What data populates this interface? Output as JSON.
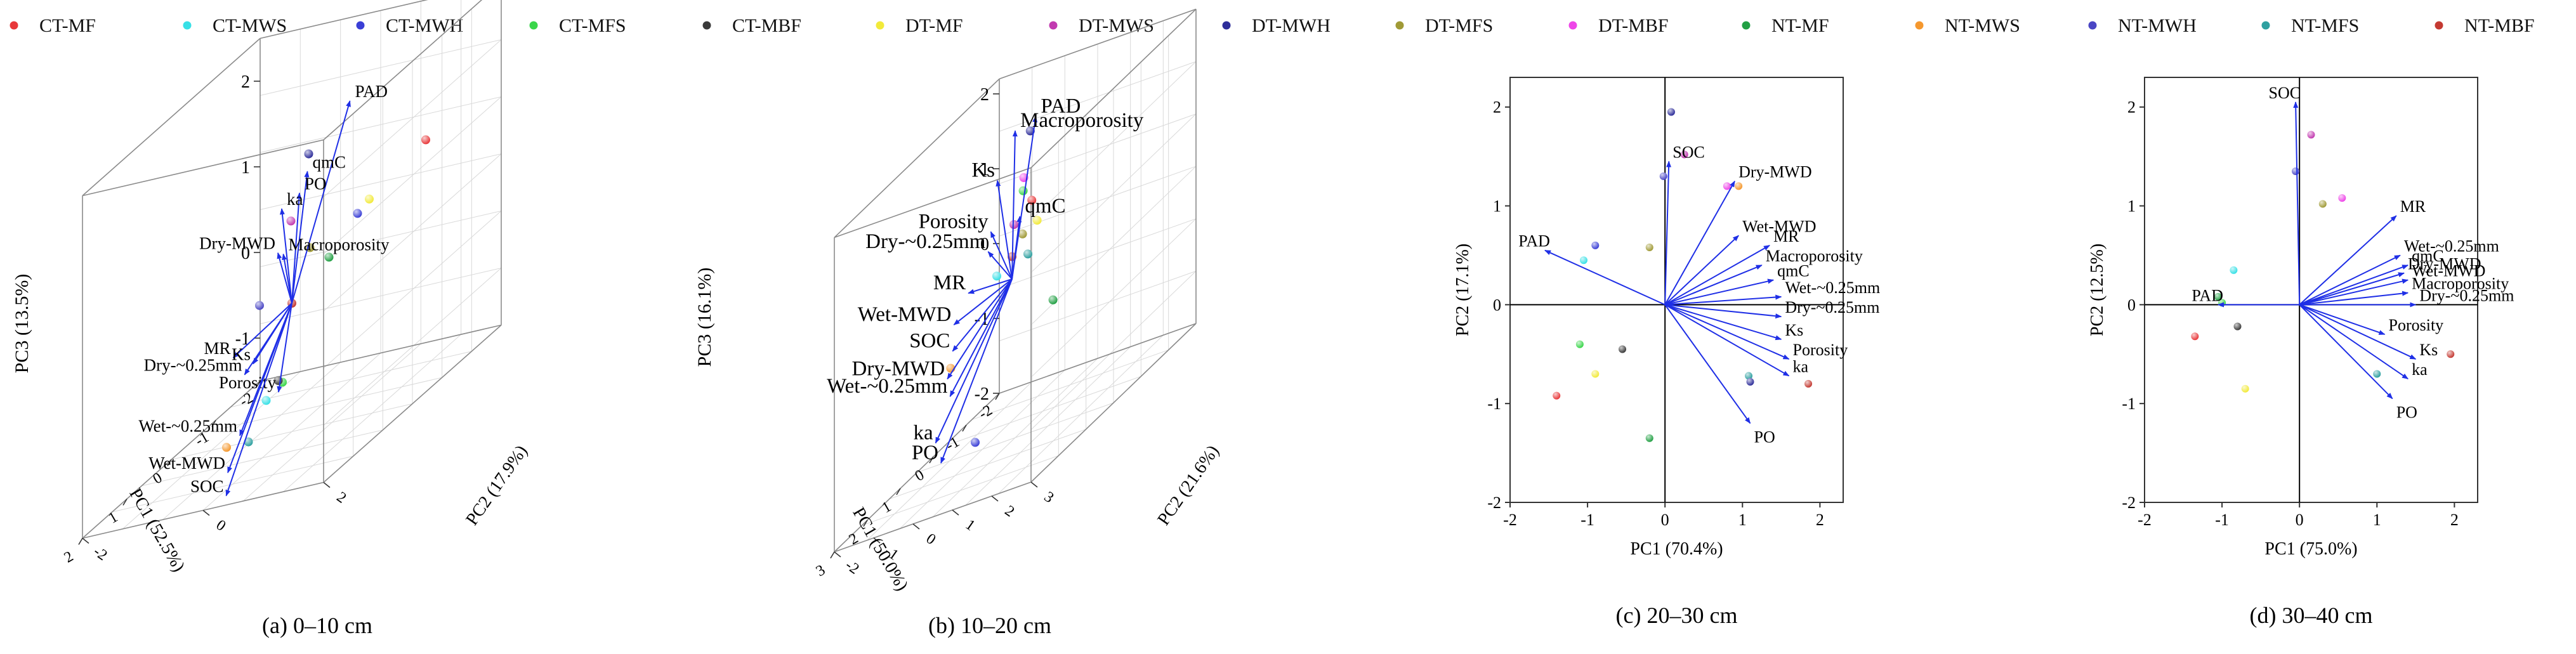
{
  "legend": [
    {
      "label": "CT-MF",
      "color": "#e8383a"
    },
    {
      "label": "CT-MWS",
      "color": "#37e0e6"
    },
    {
      "label": "CT-MWH",
      "color": "#3a3fd6"
    },
    {
      "label": "CT-MFS",
      "color": "#3ad64a"
    },
    {
      "label": "CT-MBF",
      "color": "#3a3a3a"
    },
    {
      "label": "DT-MF",
      "color": "#f2ea3a"
    },
    {
      "label": "DT-MWS",
      "color": "#c23ab0"
    },
    {
      "label": "DT-MWH",
      "color": "#2e2e9a"
    },
    {
      "label": "DT-MFS",
      "color": "#a09a36"
    },
    {
      "label": "DT-MBF",
      "color": "#ee46e8"
    },
    {
      "label": "NT-MF",
      "color": "#22a044"
    },
    {
      "label": "NT-MWS",
      "color": "#f5982e"
    },
    {
      "label": "NT-MWH",
      "color": "#4a46c4"
    },
    {
      "label": "NT-MFS",
      "color": "#2ea0a0"
    },
    {
      "label": "NT-MBF",
      "color": "#c43a32"
    }
  ],
  "chart_data": [
    {
      "type": "scatter-3d-biplot",
      "caption": "(a) 0–10 cm",
      "xlabel": "PC1 (52.5%)",
      "ylabel": "PC2 (17.9%)",
      "zlabel": "PC3 (13.5%)",
      "xlim": [
        -2,
        2
      ],
      "ylim": [
        -2,
        2
      ],
      "zlim": [
        -1.5,
        2.5
      ],
      "zticks": [
        "-1",
        "0",
        "1",
        "2"
      ],
      "xticks": [
        "-2",
        "-1",
        "0",
        "1",
        "2"
      ],
      "yticks": [
        "-2",
        "0",
        "2"
      ],
      "loadings": [
        {
          "name": "PAD",
          "x": -0.9,
          "y": 0.3,
          "z": 1.9
        },
        {
          "name": "qmC",
          "x": 0.6,
          "y": 0.7,
          "z": 1.7
        },
        {
          "name": "PO",
          "x": 0.1,
          "y": 0.2,
          "z": 1.3
        },
        {
          "name": "ka",
          "x": 0.5,
          "y": 0.2,
          "z": 1.3
        },
        {
          "name": "Dry-MWD",
          "x": 1.4,
          "y": 0.8,
          "z": 1.1
        },
        {
          "name": "Macroporosity",
          "x": 0.6,
          "y": 0.3,
          "z": 0.8
        },
        {
          "name": "MR",
          "x": 2.0,
          "y": 0.5,
          "z": 0.2
        },
        {
          "name": "Ks",
          "x": 0.6,
          "y": -0.2,
          "z": -0.4
        },
        {
          "name": "Dry-~0.25mm",
          "x": 1.2,
          "y": 0.1,
          "z": -0.3
        },
        {
          "name": "Porosity",
          "x": 0.3,
          "y": 0.0,
          "z": -0.9
        },
        {
          "name": "Wet-~0.25mm",
          "x": 0.9,
          "y": -0.2,
          "z": -1.1
        },
        {
          "name": "Wet-MWD",
          "x": 0.9,
          "y": -0.4,
          "z": -1.5
        },
        {
          "name": "SOC",
          "x": 0.8,
          "y": -0.5,
          "z": -1.8
        }
      ],
      "points": [
        {
          "group": "CT-MF",
          "x": -2.2,
          "y": 0.6,
          "z": 0.8
        },
        {
          "group": "DT-MF",
          "x": -1.2,
          "y": 0.4,
          "z": 0.6
        },
        {
          "group": "CT-MWH",
          "x": -0.8,
          "y": 0.5,
          "z": 0.6
        },
        {
          "group": "NT-MF",
          "x": -0.7,
          "y": 0.1,
          "z": 0.2
        },
        {
          "group": "CT-MFS",
          "x": -0.6,
          "y": -0.6,
          "z": -1.1
        },
        {
          "group": "CT-MWS",
          "x": -0.1,
          "y": -0.5,
          "z": -1.1
        },
        {
          "group": "NT-MFS",
          "x": 0.3,
          "y": -0.5,
          "z": -1.4
        },
        {
          "group": "CT-MBF",
          "x": -0.1,
          "y": -0.3,
          "z": -0.9
        },
        {
          "group": "NT-MBF",
          "x": 0.0,
          "y": 0.0,
          "z": 0.0
        },
        {
          "group": "DT-MFS",
          "x": 0.0,
          "y": 0.3,
          "z": 0.6
        },
        {
          "group": "DT-MWH",
          "x": 0.3,
          "y": 0.5,
          "z": 1.8
        },
        {
          "group": "DT-MWS",
          "x": 0.7,
          "y": 0.5,
          "z": 1.2
        },
        {
          "group": "NT-MWH",
          "x": 1.0,
          "y": 0.2,
          "z": 0.4
        },
        {
          "group": "NT-MWS",
          "x": 1.2,
          "y": -0.2,
          "z": -1.1
        }
      ]
    },
    {
      "type": "scatter-3d-biplot",
      "caption": "(b)  10–20 cm",
      "xlabel": "PC1 (50.0%)",
      "ylabel": "PC2 (21.6%)",
      "zlabel": "PC3 (16.1%)",
      "xlim": [
        -2,
        3
      ],
      "ylim": [
        -2,
        3
      ],
      "zlim": [
        -2,
        2.2
      ],
      "zticks": [
        "-2",
        "-1",
        "0",
        "1",
        "2"
      ],
      "xticks": [
        "-2",
        "-1",
        "0",
        "1",
        "2",
        "3"
      ],
      "yticks": [
        "-2",
        "-1",
        "0",
        "1",
        "2",
        "3"
      ],
      "loadings": [
        {
          "name": "PAD",
          "x": -0.6,
          "y": 0.1,
          "z": 1.9
        },
        {
          "name": "Macroporosity",
          "x": 0.5,
          "y": 0.5,
          "z": 2.1
        },
        {
          "name": "Ks",
          "x": 0.8,
          "y": 0.3,
          "z": 1.6
        },
        {
          "name": "Porosity",
          "x": 1.0,
          "y": 0.3,
          "z": 1.0
        },
        {
          "name": "qmC",
          "x": 0.0,
          "y": 0.2,
          "z": 0.8
        },
        {
          "name": "Dry-~0.25mm",
          "x": 1.2,
          "y": 0.4,
          "z": 0.8
        },
        {
          "name": "MR",
          "x": 1.8,
          "y": 0.4,
          "z": 0.5
        },
        {
          "name": "Wet-MWD",
          "x": 2.0,
          "y": 0.2,
          "z": 0.2
        },
        {
          "name": "SOC",
          "x": 1.8,
          "y": 0.0,
          "z": -0.2
        },
        {
          "name": "Dry-MWD",
          "x": 1.6,
          "y": -0.3,
          "z": -0.6
        },
        {
          "name": "Wet-~0.25mm",
          "x": 1.4,
          "y": -0.4,
          "z": -0.9
        },
        {
          "name": "ka",
          "x": 1.6,
          "y": -0.6,
          "z": -1.4
        },
        {
          "name": "PO",
          "x": 1.2,
          "y": -0.8,
          "z": -1.8
        }
      ],
      "points": [
        {
          "group": "DT-MWH",
          "x": 0.4,
          "y": 0.8,
          "z": 2.0
        },
        {
          "group": "DT-MBF",
          "x": 0.0,
          "y": 0.3,
          "z": 1.3
        },
        {
          "group": "CT-MFS",
          "x": -0.1,
          "y": 0.2,
          "z": 1.1
        },
        {
          "group": "DT-MWS",
          "x": 0.3,
          "y": 0.3,
          "z": 0.8
        },
        {
          "group": "CT-MF",
          "x": -0.6,
          "y": 0.0,
          "z": 0.8
        },
        {
          "group": "DT-MFS",
          "x": -0.2,
          "y": 0.1,
          "z": 0.5
        },
        {
          "group": "NT-MBF",
          "x": 0.0,
          "y": 0.0,
          "z": 0.3
        },
        {
          "group": "CT-MWS",
          "x": 0.7,
          "y": 0.2,
          "z": 0.3
        },
        {
          "group": "DT-MF",
          "x": -1.0,
          "y": -0.2,
          "z": 0.4
        },
        {
          "group": "NT-MFS",
          "x": -0.6,
          "y": -0.1,
          "z": 0.1
        },
        {
          "group": "NT-MF",
          "x": -1.6,
          "y": -0.3,
          "z": -0.9
        },
        {
          "group": "NT-MWS",
          "x": 1.5,
          "y": -0.3,
          "z": -0.5
        },
        {
          "group": "CT-MWH",
          "x": 0.4,
          "y": -0.6,
          "z": -1.9
        }
      ]
    },
    {
      "type": "scatter-biplot",
      "caption": "(c)  20–30 cm",
      "xlabel": "PC1 (70.4%)",
      "ylabel": "PC2 (17.1%)",
      "xlim": [
        -2,
        2.3
      ],
      "ylim": [
        -2,
        2.3
      ],
      "xticks": [
        -2,
        -1,
        0,
        1,
        2
      ],
      "yticks": [
        -2,
        -1,
        0,
        1,
        2
      ],
      "loadings": [
        {
          "name": "PAD",
          "x": -1.55,
          "y": 0.55
        },
        {
          "name": "SOC",
          "x": 0.05,
          "y": 1.45
        },
        {
          "name": "Dry-MWD",
          "x": 0.9,
          "y": 1.25
        },
        {
          "name": "Wet-MWD",
          "x": 0.95,
          "y": 0.7
        },
        {
          "name": "MR",
          "x": 1.35,
          "y": 0.6
        },
        {
          "name": "Macroporosity",
          "x": 1.25,
          "y": 0.4
        },
        {
          "name": "qmC",
          "x": 1.4,
          "y": 0.25
        },
        {
          "name": "Wet-~0.25mm",
          "x": 1.5,
          "y": 0.08
        },
        {
          "name": "Dry-~0.25mm",
          "x": 1.5,
          "y": -0.12
        },
        {
          "name": "Ks",
          "x": 1.5,
          "y": -0.35
        },
        {
          "name": "Porosity",
          "x": 1.6,
          "y": -0.55
        },
        {
          "name": "ka",
          "x": 1.6,
          "y": -0.72
        },
        {
          "name": "PO",
          "x": 1.1,
          "y": -1.2
        }
      ],
      "points": [
        {
          "group": "DT-MWH",
          "x": 0.08,
          "y": 1.95
        },
        {
          "group": "DT-MWS",
          "x": 0.25,
          "y": 1.52
        },
        {
          "group": "NT-MWH",
          "x": -0.02,
          "y": 1.3
        },
        {
          "group": "DT-MBF",
          "x": 0.8,
          "y": 1.2
        },
        {
          "group": "NT-MWS",
          "x": 0.95,
          "y": 1.2
        },
        {
          "group": "CT-MWH",
          "x": -0.9,
          "y": 0.6
        },
        {
          "group": "CT-MWS",
          "x": -1.05,
          "y": 0.45
        },
        {
          "group": "DT-MFS",
          "x": -0.2,
          "y": 0.58
        },
        {
          "group": "CT-MFS",
          "x": -1.1,
          "y": -0.4
        },
        {
          "group": "CT-MBF",
          "x": -0.55,
          "y": -0.45
        },
        {
          "group": "DT-MF",
          "x": -0.9,
          "y": -0.7
        },
        {
          "group": "CT-MF",
          "x": -1.4,
          "y": -0.92
        },
        {
          "group": "NT-MF",
          "x": -0.2,
          "y": -1.35
        },
        {
          "group": "NT-MFS",
          "x": 1.08,
          "y": -0.72
        },
        {
          "group": "DT-MWH",
          "x": 1.1,
          "y": -0.78
        },
        {
          "group": "NT-MBF",
          "x": 1.85,
          "y": -0.8
        }
      ]
    },
    {
      "type": "scatter-biplot",
      "caption": "(d)  30–40 cm",
      "xlabel": "PC1 (75.0%)",
      "ylabel": "PC2 (12.5%)",
      "xlim": [
        -2,
        2.3
      ],
      "ylim": [
        -2,
        2.3
      ],
      "xticks": [
        -2,
        -1,
        0,
        1,
        2
      ],
      "yticks": [
        -2,
        -1,
        0,
        1,
        2
      ],
      "loadings": [
        {
          "name": "SOC",
          "x": -0.05,
          "y": 2.05
        },
        {
          "name": "MR",
          "x": 1.25,
          "y": 0.9
        },
        {
          "name": "Wet-~0.25mm",
          "x": 1.3,
          "y": 0.5
        },
        {
          "name": "qmC",
          "x": 1.4,
          "y": 0.4
        },
        {
          "name": "Dry-MWD",
          "x": 1.35,
          "y": 0.32
        },
        {
          "name": "Wet-MWD",
          "x": 1.4,
          "y": 0.25
        },
        {
          "name": "Macroporosity",
          "x": 1.4,
          "y": 0.12
        },
        {
          "name": "Dry-~0.25mm",
          "x": 1.5,
          "y": 0.0
        },
        {
          "name": "PAD",
          "x": -1.05,
          "y": 0.0
        },
        {
          "name": "Porosity",
          "x": 1.1,
          "y": -0.3
        },
        {
          "name": "Ks",
          "x": 1.5,
          "y": -0.55
        },
        {
          "name": "ka",
          "x": 1.4,
          "y": -0.75
        },
        {
          "name": "PO",
          "x": 1.2,
          "y": -0.95
        }
      ],
      "points": [
        {
          "group": "DT-MWS",
          "x": 0.15,
          "y": 1.72
        },
        {
          "group": "NT-MWH",
          "x": -0.05,
          "y": 1.35
        },
        {
          "group": "DT-MBF",
          "x": 0.55,
          "y": 1.08
        },
        {
          "group": "DT-MFS",
          "x": 0.3,
          "y": 1.02
        },
        {
          "group": "CT-MWS",
          "x": -0.85,
          "y": 0.35
        },
        {
          "group": "NT-MF",
          "x": -1.05,
          "y": 0.08
        },
        {
          "group": "CT-MFS",
          "x": -1.0,
          "y": 0.02
        },
        {
          "group": "CT-MBF",
          "x": -0.8,
          "y": -0.22
        },
        {
          "group": "CT-MF",
          "x": -1.35,
          "y": -0.32
        },
        {
          "group": "DT-MF",
          "x": -0.7,
          "y": -0.85
        },
        {
          "group": "NT-MFS",
          "x": 1.0,
          "y": -0.7
        },
        {
          "group": "NT-MBF",
          "x": 1.95,
          "y": -0.5
        }
      ]
    }
  ]
}
